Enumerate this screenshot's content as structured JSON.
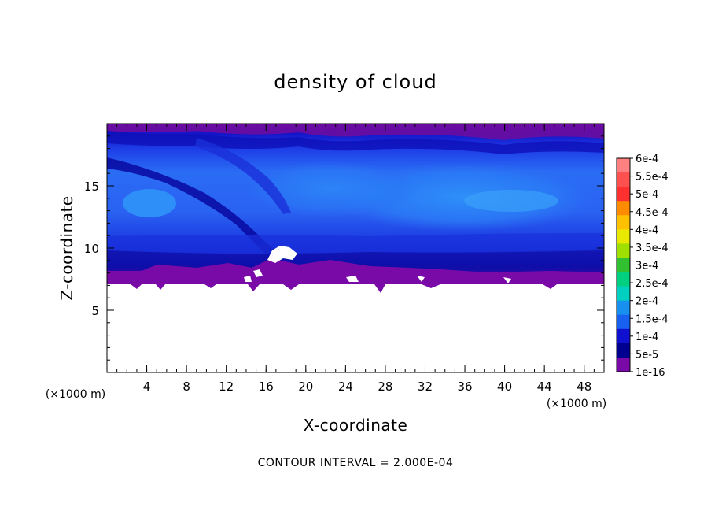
{
  "chart_data": {
    "type": "heatmap",
    "title": "density of cloud",
    "xlabel": "X-coordinate",
    "ylabel": "Z-coordinate",
    "x_unit": "(×1000 m)",
    "y_unit": "(×1000 m)",
    "xlim": [
      0,
      50
    ],
    "ylim": [
      0,
      20
    ],
    "x_ticks": [
      4,
      8,
      12,
      16,
      20,
      24,
      28,
      32,
      36,
      40,
      44,
      48
    ],
    "y_ticks": [
      5,
      10,
      15
    ],
    "footer": "CONTOUR INTERVAL = 2.000E-04",
    "colorbar": {
      "labels": [
        "6e-4",
        "5.5e-4",
        "5e-4",
        "4.5e-4",
        "4e-4",
        "3.5e-4",
        "3e-4",
        "2.5e-4",
        "2e-4",
        "1.5e-4",
        "1e-4",
        "5e-5",
        "1e-16"
      ],
      "colors": [
        "#ff8080",
        "#ff5050",
        "#ff3030",
        "#ff8c00",
        "#ffc000",
        "#e8e800",
        "#a0e000",
        "#30c030",
        "#00d080",
        "#00d0c0",
        "#1890f0",
        "#1860f0",
        "#1010d0",
        "#000090",
        "#7a0aa8"
      ]
    },
    "cloud_base_z": 7
  }
}
